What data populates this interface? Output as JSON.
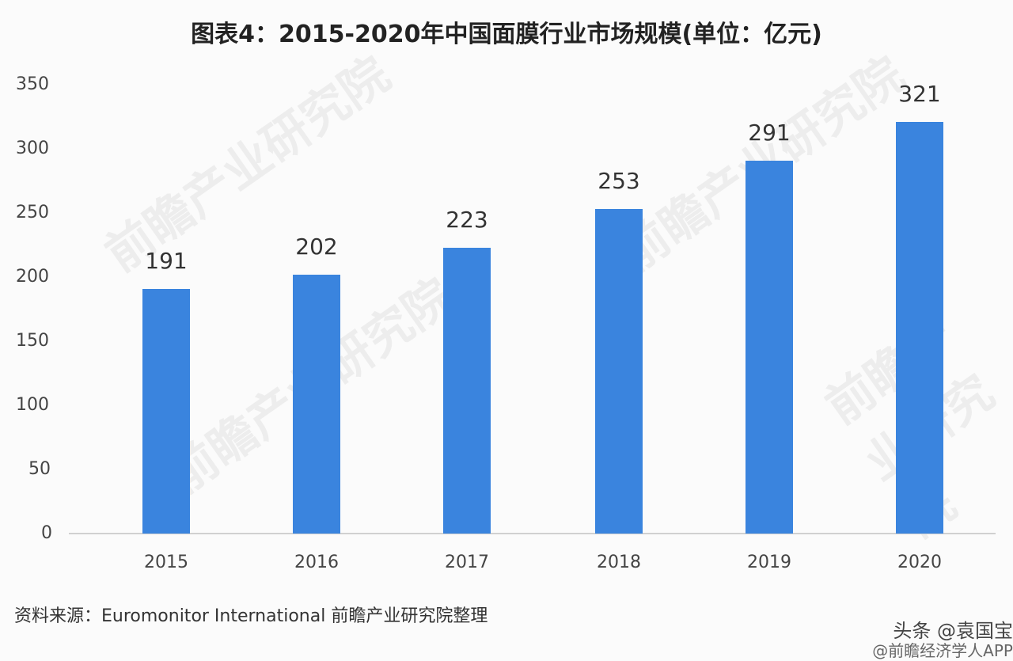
{
  "title": "图表4：2015-2020年中国面膜行业市场规模(单位：亿元)",
  "source": "资料来源：Euromonitor International 前瞻产业研究院整理",
  "watermark": {
    "line1": "头条 @袁国宝",
    "line2": "@前瞻经济学人APP",
    "bg": "前瞻产业研究院"
  },
  "colors": {
    "bar": "#3a84de",
    "axis": "#d0d0d0",
    "text": "#333333"
  },
  "yaxis": {
    "ticks": [
      "350",
      "300",
      "250",
      "200",
      "150",
      "100",
      "50",
      "0"
    ]
  },
  "chart_data": {
    "type": "bar",
    "title": "图表4：2015-2020年中国面膜行业市场规模(单位：亿元)",
    "categories": [
      "2015",
      "2016",
      "2017",
      "2018",
      "2019",
      "2020"
    ],
    "values": [
      191,
      202,
      223,
      253,
      291,
      321
    ],
    "labels": [
      "191",
      "202",
      "223",
      "253",
      "291",
      "321"
    ],
    "xlabel": "",
    "ylabel": "亿元",
    "ylim": [
      0,
      350
    ],
    "yticks": [
      0,
      50,
      100,
      150,
      200,
      250,
      300,
      350
    ],
    "grid": false,
    "legend": null
  }
}
